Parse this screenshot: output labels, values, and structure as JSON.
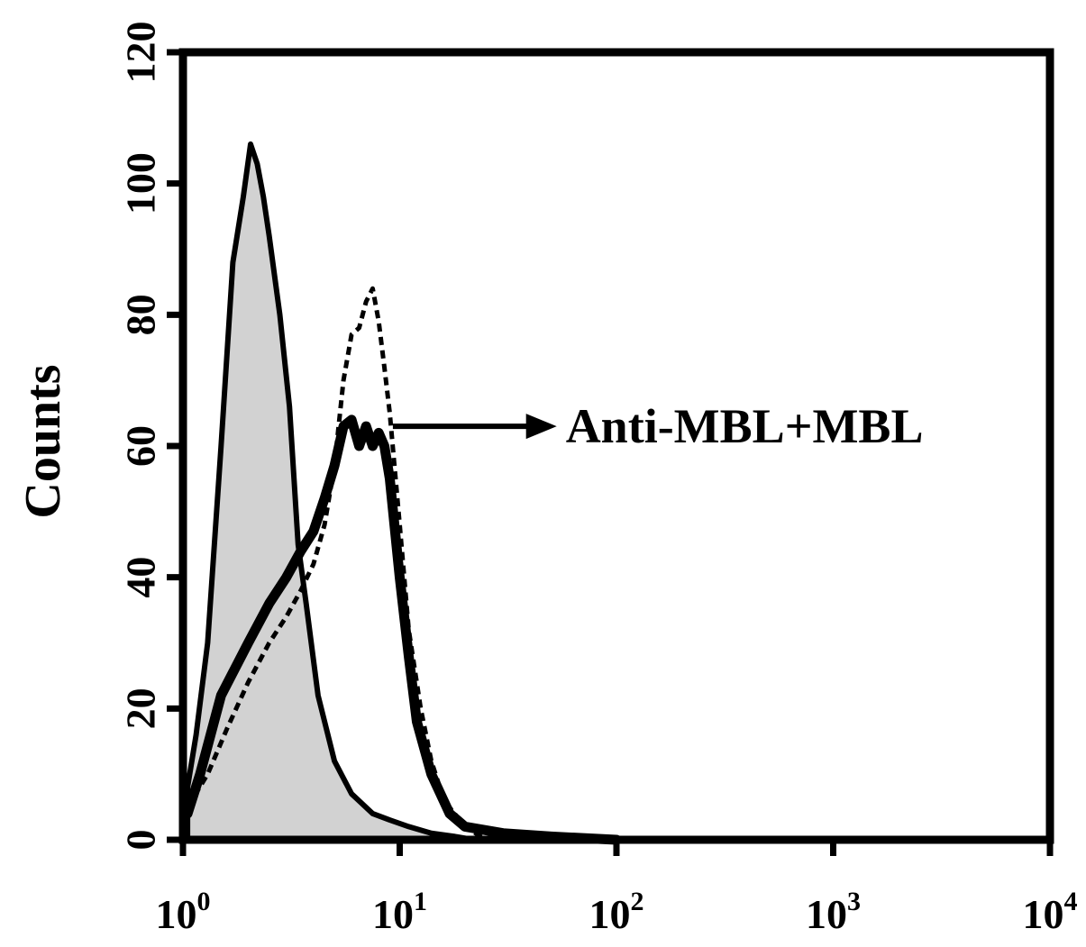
{
  "chart_data": {
    "type": "area",
    "title": "",
    "xlabel": "",
    "ylabel": "Counts",
    "x_scale": "log",
    "xlim": [
      1,
      10000
    ],
    "ylim": [
      0,
      120
    ],
    "grid": false,
    "x_ticks": [
      {
        "value": 1,
        "base": "10",
        "exp": "0"
      },
      {
        "value": 10,
        "base": "10",
        "exp": "1"
      },
      {
        "value": 100,
        "base": "10",
        "exp": "2"
      },
      {
        "value": 1000,
        "base": "10",
        "exp": "3"
      },
      {
        "value": 10000,
        "base": "10",
        "exp": "4"
      }
    ],
    "y_ticks": [
      {
        "value": 0,
        "label": "0"
      },
      {
        "value": 20,
        "label": "20"
      },
      {
        "value": 40,
        "label": "40"
      },
      {
        "value": 60,
        "label": "60"
      },
      {
        "value": 80,
        "label": "80"
      },
      {
        "value": 100,
        "label": "100"
      },
      {
        "value": 120,
        "label": "120"
      }
    ],
    "series": [
      {
        "style": "filled-gray",
        "x": [
          1.05,
          1.15,
          1.3,
          1.5,
          1.7,
          1.9,
          2.05,
          2.2,
          2.35,
          2.5,
          2.8,
          3.1,
          3.4,
          3.7,
          4.2,
          5.0,
          6.0,
          7.5,
          9.0,
          11,
          14,
          18,
          22
        ],
        "y": [
          8,
          16,
          30,
          60,
          88,
          98,
          106,
          103,
          98,
          92,
          80,
          66,
          45,
          36,
          22,
          12,
          7,
          4,
          3,
          2,
          1,
          0.5,
          0
        ]
      },
      {
        "style": "dashed",
        "x": [
          1.05,
          1.3,
          1.6,
          2.0,
          2.5,
          3.0,
          3.5,
          4.0,
          4.5,
          5.0,
          5.5,
          6.0,
          6.5,
          7.0,
          7.5,
          8.0,
          8.5,
          9.0,
          10,
          11,
          12.5,
          14,
          16,
          20,
          25
        ],
        "y": [
          5,
          10,
          17,
          24,
          30,
          34,
          38,
          42,
          48,
          57,
          70,
          77,
          78,
          82,
          84,
          79,
          72,
          65,
          48,
          32,
          20,
          12,
          6,
          2,
          0
        ]
      },
      {
        "style": "solid-thick",
        "x": [
          1.05,
          1.2,
          1.5,
          2.0,
          2.5,
          3.0,
          3.5,
          4.0,
          4.5,
          5.0,
          5.5,
          6.0,
          6.5,
          7.0,
          7.5,
          8.0,
          8.5,
          9.0,
          10,
          11,
          12,
          14,
          17,
          20,
          30,
          50,
          100
        ],
        "y": [
          4,
          10,
          22,
          30,
          36,
          40,
          44,
          47,
          52,
          57,
          63,
          64,
          60,
          63,
          60,
          62,
          60,
          55,
          40,
          28,
          18,
          10,
          4,
          2,
          1,
          0.5,
          0
        ]
      }
    ],
    "annotations": [
      {
        "text": "Anti-MBL+MBL",
        "arrow_from": [
          9.3,
          63
        ],
        "arrow_to": [
          52,
          63
        ]
      }
    ]
  }
}
